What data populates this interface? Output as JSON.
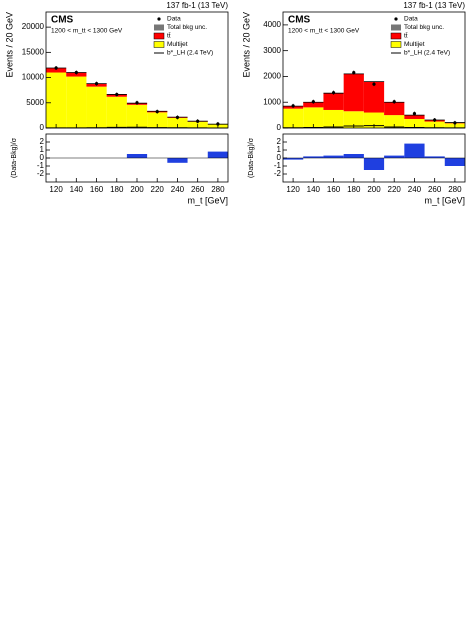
{
  "chart_data": [
    {
      "type": "stacked_histogram",
      "lumi": "137 fb-1 (13 TeV)",
      "experiment": "CMS",
      "region": "1200 < m_tt < 1300 GeV",
      "unc_label": "Total bkg unc.",
      "y_label": "Events / 20 GeV",
      "x_label": "m_t [GeV]",
      "bins": [
        110,
        130,
        150,
        170,
        190,
        210,
        230,
        250,
        270,
        290
      ],
      "xlim": [
        110,
        290
      ],
      "xticks": [
        120,
        140,
        160,
        180,
        200,
        220,
        240,
        260,
        280
      ],
      "ylim": [
        0,
        23000
      ],
      "yticks": [
        0,
        5000,
        10000,
        15000,
        20000
      ],
      "series": [
        {
          "name": "Multijet",
          "color": "#ffff00",
          "values": [
            11000,
            10200,
            8200,
            6200,
            4600,
            3100,
            2000,
            1250,
            700
          ]
        },
        {
          "name": "tt̄",
          "color": "#ff0000",
          "values": [
            900,
            800,
            600,
            450,
            320,
            220,
            150,
            100,
            60
          ]
        },
        {
          "name": "b*_LH (2.4 TeV)",
          "color": "#000000",
          "values": [
            20,
            30,
            60,
            120,
            150,
            80,
            40,
            20,
            10
          ]
        }
      ],
      "data": {
        "name": "Data",
        "values": [
          11900,
          11000,
          8800,
          6650,
          5000,
          3250,
          2100,
          1350,
          800
        ]
      },
      "pull": {
        "y_label": "(Data-Bkg)/σ",
        "color": "#1f3fe0",
        "values": [
          0,
          0,
          0,
          0,
          0.5,
          0,
          -0.6,
          0,
          0.8
        ],
        "ylim": [
          -3,
          3
        ],
        "yticks": [
          -2,
          -1,
          0,
          1,
          2
        ]
      }
    },
    {
      "type": "stacked_histogram",
      "lumi": "137 fb-1 (13 TeV)",
      "experiment": "CMS",
      "region": "1200 < m_tt < 1300 GeV",
      "unc_label": "Total bkg unc.",
      "y_label": "Events / 20 GeV",
      "x_label": "m_t [GeV]",
      "bins": [
        110,
        130,
        150,
        170,
        190,
        210,
        230,
        250,
        270,
        290
      ],
      "xlim": [
        110,
        290
      ],
      "xticks": [
        120,
        140,
        160,
        180,
        200,
        220,
        240,
        260,
        280
      ],
      "ylim": [
        0,
        4500
      ],
      "yticks": [
        0,
        1000,
        2000,
        3000,
        4000
      ],
      "series": [
        {
          "name": "Multijet",
          "color": "#ffff00",
          "values": [
            750,
            800,
            700,
            650,
            600,
            500,
            350,
            250,
            180
          ]
        },
        {
          "name": "tt̄",
          "color": "#ff0000",
          "values": [
            100,
            200,
            650,
            1450,
            1200,
            500,
            150,
            60,
            30
          ]
        },
        {
          "name": "b*_LH (2.4 TeV)",
          "color": "#000000",
          "values": [
            10,
            20,
            40,
            80,
            90,
            40,
            20,
            10,
            5
          ]
        }
      ],
      "data": {
        "name": "Data",
        "values": [
          860,
          1020,
          1370,
          2150,
          1700,
          1020,
          560,
          310,
          200
        ]
      },
      "pull": {
        "y_label": "(Data-Bkg)/σ",
        "color": "#1f3fe0",
        "values": [
          -0.2,
          0.2,
          0.3,
          0.5,
          -1.5,
          0.3,
          1.8,
          0.2,
          -1
        ]
      },
      "_": null
    }
  ]
}
